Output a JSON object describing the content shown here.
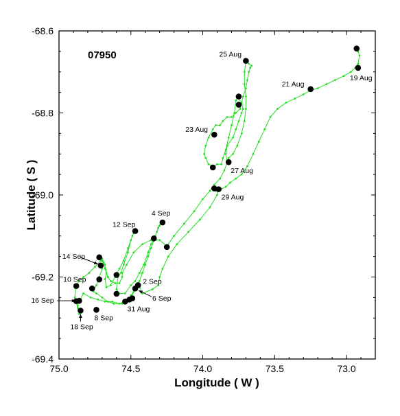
{
  "chart_data": {
    "type": "scatter",
    "title": "",
    "annotation": "07950",
    "xlabel": "Longitude ( W )",
    "ylabel": "Latitude ( S )",
    "xlim": [
      75.0,
      72.8
    ],
    "ylim": [
      -69.4,
      -68.6
    ],
    "x_ticks": [
      75.0,
      74.5,
      74.0,
      73.5,
      73.0
    ],
    "x_tick_labels": [
      "75.0",
      "74.5",
      "74.0",
      "73.5",
      "73.0"
    ],
    "y_ticks": [
      -68.6,
      -68.8,
      -69.0,
      -69.2,
      -69.4
    ],
    "y_tick_labels": [
      "-68.6",
      "-68.8",
      "-69.0",
      "-69.2",
      "-69.4"
    ],
    "grid": false,
    "track_color": "#22dd22",
    "marker_color": "#000000",
    "track": [
      [
        72.93,
        -68.64
      ],
      [
        72.92,
        -68.65
      ],
      [
        72.91,
        -68.66
      ],
      [
        72.92,
        -68.68
      ],
      [
        72.94,
        -68.69
      ],
      [
        72.97,
        -68.7
      ],
      [
        73.02,
        -68.71
      ],
      [
        73.08,
        -68.72
      ],
      [
        73.14,
        -68.73
      ],
      [
        73.2,
        -68.74
      ],
      [
        73.25,
        -68.745
      ],
      [
        73.3,
        -68.755
      ],
      [
        73.36,
        -68.765
      ],
      [
        73.42,
        -68.775
      ],
      [
        73.48,
        -68.79
      ],
      [
        73.53,
        -68.81
      ],
      [
        73.57,
        -68.84
      ],
      [
        73.61,
        -68.87
      ],
      [
        73.65,
        -68.9
      ],
      [
        73.69,
        -68.93
      ],
      [
        73.73,
        -68.95
      ],
      [
        73.77,
        -68.96
      ],
      [
        73.81,
        -68.97
      ],
      [
        73.84,
        -68.98
      ],
      [
        73.87,
        -68.985
      ],
      [
        73.89,
        -68.99
      ],
      [
        73.91,
        -68.99
      ],
      [
        73.93,
        -68.985
      ],
      [
        73.92,
        -68.98
      ],
      [
        73.89,
        -68.985
      ],
      [
        73.9,
        -69.0
      ],
      [
        73.95,
        -69.03
      ],
      [
        74.02,
        -69.06
      ],
      [
        74.1,
        -69.09
      ],
      [
        74.18,
        -69.12
      ],
      [
        74.24,
        -69.15
      ],
      [
        74.28,
        -69.18
      ],
      [
        74.3,
        -69.2
      ],
      [
        74.31,
        -69.22
      ],
      [
        74.35,
        -69.23
      ],
      [
        74.42,
        -69.24
      ],
      [
        74.44,
        -69.225
      ],
      [
        74.47,
        -69.23
      ],
      [
        74.5,
        -69.25
      ],
      [
        74.54,
        -69.26
      ],
      [
        74.58,
        -69.265
      ],
      [
        74.63,
        -69.26
      ],
      [
        74.68,
        -69.26
      ],
      [
        74.73,
        -69.255
      ],
      [
        74.78,
        -69.25
      ],
      [
        74.83,
        -69.24
      ],
      [
        74.86,
        -69.26
      ],
      [
        74.87,
        -69.27
      ],
      [
        74.86,
        -69.29
      ],
      [
        74.87,
        -69.275
      ],
      [
        74.88,
        -69.26
      ],
      [
        74.89,
        -69.25
      ],
      [
        74.88,
        -69.22
      ],
      [
        74.86,
        -69.21
      ],
      [
        74.83,
        -69.2
      ],
      [
        74.79,
        -69.19
      ],
      [
        74.75,
        -69.175
      ],
      [
        74.71,
        -69.16
      ],
      [
        74.69,
        -69.165
      ],
      [
        74.7,
        -69.18
      ],
      [
        74.72,
        -69.2
      ],
      [
        74.74,
        -69.22
      ],
      [
        74.76,
        -69.235
      ],
      [
        74.74,
        -69.24
      ],
      [
        74.7,
        -69.25
      ],
      [
        74.66,
        -69.26
      ],
      [
        74.62,
        -69.265
      ],
      [
        74.56,
        -69.265
      ],
      [
        74.52,
        -69.26
      ],
      [
        74.5,
        -69.245
      ],
      [
        74.48,
        -69.235
      ],
      [
        74.46,
        -69.22
      ],
      [
        74.44,
        -69.21
      ],
      [
        74.42,
        -69.19
      ],
      [
        74.4,
        -69.17
      ],
      [
        74.38,
        -69.15
      ],
      [
        74.36,
        -69.13
      ],
      [
        74.34,
        -69.11
      ],
      [
        74.32,
        -69.09
      ],
      [
        74.3,
        -69.075
      ],
      [
        74.29,
        -69.065
      ],
      [
        74.31,
        -69.08
      ],
      [
        74.33,
        -69.1
      ],
      [
        74.36,
        -69.12
      ],
      [
        74.38,
        -69.14
      ],
      [
        74.41,
        -69.17
      ],
      [
        74.44,
        -69.19
      ],
      [
        74.47,
        -69.21
      ],
      [
        74.5,
        -69.22
      ],
      [
        74.54,
        -69.24
      ],
      [
        74.58,
        -69.24
      ],
      [
        74.6,
        -69.23
      ],
      [
        74.59,
        -69.2
      ],
      [
        74.57,
        -69.19
      ],
      [
        74.55,
        -69.17
      ],
      [
        74.52,
        -69.14
      ],
      [
        74.5,
        -69.11
      ],
      [
        74.48,
        -69.09
      ],
      [
        74.47,
        -69.085
      ],
      [
        74.49,
        -69.1
      ],
      [
        74.52,
        -69.13
      ],
      [
        74.55,
        -69.16
      ],
      [
        74.58,
        -69.18
      ],
      [
        74.61,
        -69.2
      ],
      [
        74.64,
        -69.22
      ],
      [
        74.67,
        -69.225
      ],
      [
        74.68,
        -69.205
      ],
      [
        74.67,
        -69.19
      ],
      [
        74.68,
        -69.17
      ],
      [
        74.7,
        -69.155
      ],
      [
        74.71,
        -69.15
      ],
      [
        74.7,
        -69.16
      ],
      [
        74.68,
        -69.18
      ],
      [
        74.66,
        -69.2
      ],
      [
        74.64,
        -69.21
      ],
      [
        74.61,
        -69.215
      ],
      [
        74.58,
        -69.215
      ],
      [
        74.56,
        -69.2
      ],
      [
        74.56,
        -69.19
      ],
      [
        74.53,
        -69.17
      ],
      [
        74.48,
        -69.14
      ],
      [
        74.42,
        -69.12
      ],
      [
        74.36,
        -69.11
      ],
      [
        74.3,
        -69.11
      ],
      [
        74.25,
        -69.125
      ],
      [
        74.2,
        -69.1
      ],
      [
        74.13,
        -69.07
      ],
      [
        74.06,
        -69.04
      ],
      [
        74.0,
        -69.01
      ],
      [
        73.95,
        -68.99
      ],
      [
        73.92,
        -68.975
      ],
      [
        73.88,
        -68.96
      ],
      [
        73.85,
        -68.94
      ],
      [
        73.83,
        -68.92
      ],
      [
        73.84,
        -68.9
      ],
      [
        73.83,
        -68.88
      ],
      [
        73.79,
        -68.86
      ],
      [
        73.77,
        -68.84
      ],
      [
        73.75,
        -68.82
      ],
      [
        73.73,
        -68.8
      ],
      [
        73.72,
        -68.79
      ],
      [
        73.73,
        -68.775
      ],
      [
        73.76,
        -68.76
      ],
      [
        73.77,
        -68.77
      ],
      [
        73.78,
        -68.8
      ],
      [
        73.8,
        -68.83
      ],
      [
        73.82,
        -68.86
      ],
      [
        73.84,
        -68.89
      ],
      [
        73.86,
        -68.91
      ],
      [
        73.87,
        -68.925
      ],
      [
        73.9,
        -68.925
      ],
      [
        73.93,
        -68.93
      ],
      [
        73.96,
        -68.925
      ],
      [
        73.98,
        -68.91
      ],
      [
        73.99,
        -68.9
      ],
      [
        73.98,
        -68.88
      ],
      [
        73.96,
        -68.86
      ],
      [
        73.93,
        -68.84
      ],
      [
        73.91,
        -68.83
      ],
      [
        73.88,
        -68.83
      ],
      [
        73.86,
        -68.82
      ],
      [
        73.83,
        -68.81
      ],
      [
        73.8,
        -68.81
      ],
      [
        73.77,
        -68.8
      ],
      [
        73.74,
        -68.79
      ],
      [
        73.72,
        -68.76
      ],
      [
        73.7,
        -68.74
      ],
      [
        73.69,
        -68.72
      ],
      [
        73.68,
        -68.7
      ],
      [
        73.67,
        -68.69
      ],
      [
        73.66,
        -68.685
      ],
      [
        73.68,
        -68.68
      ],
      [
        73.69,
        -68.675
      ],
      [
        73.7,
        -68.675
      ],
      [
        73.71,
        -68.7
      ],
      [
        73.71,
        -68.73
      ],
      [
        73.7,
        -68.76
      ],
      [
        73.7,
        -68.79
      ],
      [
        73.71,
        -68.82
      ],
      [
        73.73,
        -68.85
      ],
      [
        73.76,
        -68.88
      ],
      [
        73.79,
        -68.9
      ],
      [
        73.82,
        -68.91
      ]
    ],
    "markers": [
      {
        "label": "19 Aug",
        "x": 72.92,
        "y": -68.69
      },
      {
        "label": "",
        "x": 72.93,
        "y": -68.643
      },
      {
        "label": "21 Aug",
        "x": 73.25,
        "y": -68.742
      },
      {
        "label": "23 Aug",
        "x": 73.92,
        "y": -68.853
      },
      {
        "label": "25 Aug",
        "x": 73.7,
        "y": -68.673
      },
      {
        "label": "",
        "x": 73.75,
        "y": -68.76
      },
      {
        "label": "",
        "x": 73.75,
        "y": -68.78
      },
      {
        "label": "27 Aug",
        "x": 73.82,
        "y": -68.92
      },
      {
        "label": "",
        "x": 73.93,
        "y": -68.933
      },
      {
        "label": "29 Aug",
        "x": 73.89,
        "y": -68.986
      },
      {
        "label": "",
        "x": 73.92,
        "y": -68.984
      },
      {
        "label": "31 Aug",
        "x": 74.51,
        "y": -69.255
      },
      {
        "label": "2 Sep",
        "x": 74.45,
        "y": -69.22
      },
      {
        "label": "4 Sep",
        "x": 74.28,
        "y": -69.067
      },
      {
        "label": "6 Sep",
        "x": 74.47,
        "y": -69.228
      },
      {
        "label": "8 Sep",
        "x": 74.74,
        "y": -69.28
      },
      {
        "label": "10 Sep",
        "x": 74.88,
        "y": -69.222
      },
      {
        "label": "12 Sep",
        "x": 74.47,
        "y": -69.088
      },
      {
        "label": "14 Sep",
        "x": 74.71,
        "y": -69.172
      },
      {
        "label": "16 Sep",
        "x": 74.86,
        "y": -69.258
      },
      {
        "label": "18 Sep",
        "x": 74.85,
        "y": -69.282
      },
      {
        "label": "",
        "x": 74.25,
        "y": -69.127
      },
      {
        "label": "",
        "x": 74.34,
        "y": -69.106
      },
      {
        "label": "",
        "x": 74.72,
        "y": -69.152
      },
      {
        "label": "",
        "x": 74.6,
        "y": -69.195
      },
      {
        "label": "",
        "x": 74.72,
        "y": -69.206
      },
      {
        "label": "",
        "x": 74.77,
        "y": -69.228
      },
      {
        "label": "",
        "x": 74.6,
        "y": -69.241
      },
      {
        "label": "",
        "x": 74.54,
        "y": -69.26
      },
      {
        "label": "",
        "x": 74.88,
        "y": -69.259
      },
      {
        "label": "",
        "x": 74.49,
        "y": -69.252
      }
    ]
  }
}
